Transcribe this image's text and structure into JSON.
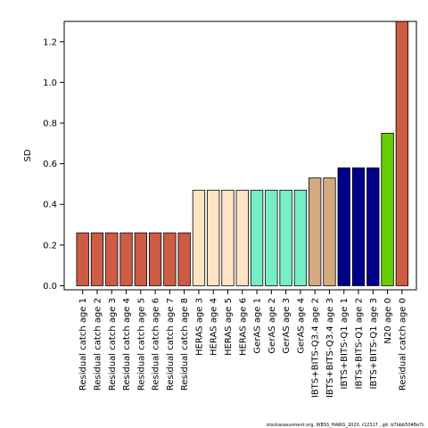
{
  "chart_data": {
    "type": "bar",
    "title": "",
    "xlabel": "",
    "ylabel": "SD",
    "ylim": [
      -0.02,
      1.3
    ],
    "yticks": [
      0.0,
      0.2,
      0.4,
      0.6,
      0.8,
      1.0,
      1.2
    ],
    "ytick_labels": [
      "0.0",
      "0.2",
      "0.4",
      "0.6",
      "0.8",
      "1.0",
      "1.2"
    ],
    "grid": false,
    "legend": "none",
    "categories": [
      "Residual catch age 1",
      "Residual catch age 2",
      "Residual catch age 3",
      "Residual catch age 4",
      "Residual catch age 5",
      "Residual catch age 6",
      "Residual catch age 7",
      "Residual catch age 8",
      "HERAS age 3",
      "HERAS age 4",
      "HERAS age 5",
      "HERAS age 6",
      "GerAS age 1",
      "GerAS age 2",
      "GerAS age 3",
      "GerAS age 4",
      "IBTS+BITS-Q3.4 age 2",
      "IBTS+BITS-Q3.4 age 3",
      "IBTS+BITS-Q1 age 1",
      "IBTS+BITS-Q1 age 2",
      "IBTS+BITS-Q1 age 3",
      "N20 age 0",
      "Residual catch age 0"
    ],
    "values": [
      0.26,
      0.26,
      0.26,
      0.26,
      0.26,
      0.26,
      0.26,
      0.26,
      0.47,
      0.47,
      0.47,
      0.47,
      0.47,
      0.47,
      0.47,
      0.47,
      0.53,
      0.53,
      0.58,
      0.58,
      0.58,
      0.75,
      1.31
    ],
    "bar_colors": [
      "#cd5c45",
      "#cd5c45",
      "#cd5c45",
      "#cd5c45",
      "#cd5c45",
      "#cd5c45",
      "#cd5c45",
      "#cd5c45",
      "#ffe4c4",
      "#ffe4c4",
      "#ffe4c4",
      "#ffe4c4",
      "#76eec6",
      "#76eec6",
      "#76eec6",
      "#76eec6",
      "#d2aa7d",
      "#d2aa7d",
      "#00008b",
      "#00008b",
      "#00008b",
      "#66cd00",
      "#cd5c45"
    ]
  },
  "footer_text": "stockassessment.org, WBSS_HAWG_2020, r12317 , git: b7bbb5048e7c"
}
